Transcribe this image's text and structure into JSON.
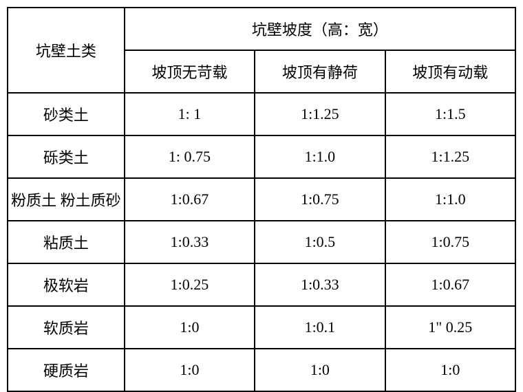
{
  "table": {
    "header": {
      "rowLabel": "坑壁土类",
      "groupHeader": "坑壁坡度（高：宽）",
      "subHeaders": [
        "坡顶无苛载",
        "坡顶有静荷",
        "坡顶有动载"
      ]
    },
    "rows": [
      {
        "label": "砂类土",
        "cells": [
          "1: 1",
          "1:1.25",
          "1:1.5"
        ]
      },
      {
        "label": "砾类土",
        "cells": [
          "1: 0.75",
          "1:1.0",
          "1:1.25"
        ]
      },
      {
        "label": "粉质土 粉土质砂",
        "cells": [
          "1:0.67",
          "1:0.75",
          "1:1.0"
        ]
      },
      {
        "label": "粘质土",
        "cells": [
          "1:0.33",
          "1:0.5",
          "1:0.75"
        ]
      },
      {
        "label": "极软岩",
        "cells": [
          "1:0.25",
          "1:0.33",
          "1:0.67"
        ]
      },
      {
        "label": "软质岩",
        "cells": [
          "1:0",
          "1:0.1",
          "1\" 0.25"
        ]
      },
      {
        "label": "硬质岩",
        "cells": [
          "1:0",
          "1:0",
          "1:0"
        ]
      }
    ],
    "styles": {
      "border_color": "#000000",
      "background_color": "#ffffff",
      "font_family": "SimSun",
      "font_size": 22,
      "cell_padding": "14px 4px",
      "text_align": "center"
    }
  }
}
